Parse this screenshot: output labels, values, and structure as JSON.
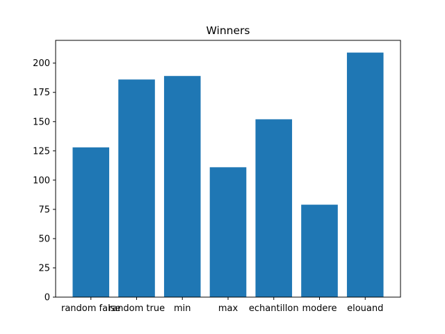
{
  "chart_data": {
    "type": "bar",
    "title": "Winners",
    "xlabel": "",
    "ylabel": "",
    "categories": [
      "random false",
      "random true",
      "min",
      "max",
      "echantillon",
      "modere",
      "elouand"
    ],
    "values": [
      128,
      186,
      189,
      111,
      152,
      79,
      209
    ],
    "ylim": [
      0,
      219.45
    ],
    "yticks": [
      0,
      25,
      50,
      75,
      100,
      125,
      150,
      175,
      200
    ],
    "grid": false,
    "bar_color": "#1f77b4"
  }
}
